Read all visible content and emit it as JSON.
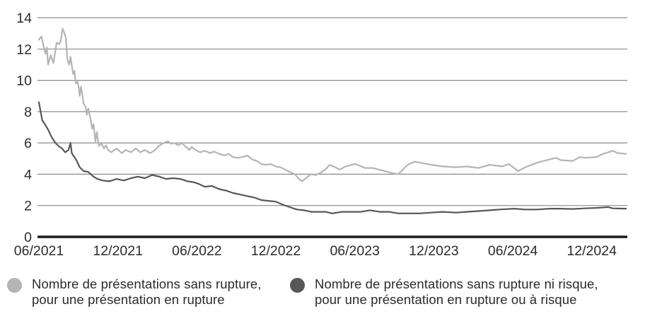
{
  "chart_data": {
    "type": "line",
    "title": "",
    "xlabel": "",
    "ylabel": "",
    "grid": "horizontal",
    "legend_position": "bottom",
    "x_axis": {
      "unit": "months_since_06_2021",
      "range_months": [
        0,
        44.7
      ],
      "ticks": [
        {
          "label": "06/2021",
          "month": 0
        },
        {
          "label": "12/2021",
          "month": 6
        },
        {
          "label": "06/2022",
          "month": 12
        },
        {
          "label": "12/2022",
          "month": 18
        },
        {
          "label": "06/2023",
          "month": 24
        },
        {
          "label": "12/2023",
          "month": 30
        },
        {
          "label": "06/2024",
          "month": 36
        },
        {
          "label": "12/2024",
          "month": 42
        }
      ]
    },
    "y_axis": {
      "range": [
        0,
        14
      ],
      "ticks": [
        0,
        2,
        4,
        6,
        8,
        10,
        12,
        14
      ]
    },
    "series": [
      {
        "name": "Nombre de présentations sans rupture, pour une présentation en rupture",
        "color": "#b4b4b4",
        "points": [
          [
            0,
            12.6
          ],
          [
            0.2,
            12.8
          ],
          [
            0.35,
            12.2
          ],
          [
            0.5,
            11.7
          ],
          [
            0.6,
            12.1
          ],
          [
            0.7,
            11.0
          ],
          [
            0.9,
            11.6
          ],
          [
            1.1,
            11.1
          ],
          [
            1.35,
            12.4
          ],
          [
            1.55,
            12.3
          ],
          [
            1.65,
            12.5
          ],
          [
            1.8,
            13.3
          ],
          [
            1.9,
            13.1
          ],
          [
            2.05,
            12.7
          ],
          [
            2.15,
            11.4
          ],
          [
            2.3,
            11.0
          ],
          [
            2.4,
            11.5
          ],
          [
            2.6,
            10.4
          ],
          [
            2.7,
            10.6
          ],
          [
            2.8,
            9.8
          ],
          [
            2.95,
            9.9
          ],
          [
            3.05,
            9.4
          ],
          [
            3.1,
            9.0
          ],
          [
            3.2,
            9.6
          ],
          [
            3.4,
            8.5
          ],
          [
            3.55,
            8.3
          ],
          [
            3.65,
            7.8
          ],
          [
            3.75,
            8.2
          ],
          [
            3.9,
            7.6
          ],
          [
            4.05,
            6.9
          ],
          [
            4.15,
            7.2
          ],
          [
            4.3,
            6.1
          ],
          [
            4.4,
            6.7
          ],
          [
            4.55,
            5.8
          ],
          [
            4.75,
            5.95
          ],
          [
            4.95,
            5.65
          ],
          [
            5.1,
            5.85
          ],
          [
            5.25,
            5.55
          ],
          [
            5.5,
            5.4
          ],
          [
            5.9,
            5.65
          ],
          [
            6.3,
            5.35
          ],
          [
            6.6,
            5.55
          ],
          [
            7.0,
            5.4
          ],
          [
            7.35,
            5.65
          ],
          [
            7.7,
            5.4
          ],
          [
            8.05,
            5.55
          ],
          [
            8.45,
            5.35
          ],
          [
            8.75,
            5.5
          ],
          [
            9.1,
            5.8
          ],
          [
            9.5,
            6.0
          ],
          [
            9.8,
            6.1
          ],
          [
            10.05,
            5.95
          ],
          [
            10.3,
            6.0
          ],
          [
            10.6,
            5.85
          ],
          [
            10.85,
            6.0
          ],
          [
            11.1,
            5.8
          ],
          [
            11.45,
            5.55
          ],
          [
            11.6,
            5.75
          ],
          [
            11.9,
            5.55
          ],
          [
            12.25,
            5.4
          ],
          [
            12.6,
            5.5
          ],
          [
            13.0,
            5.35
          ],
          [
            13.3,
            5.45
          ],
          [
            13.7,
            5.3
          ],
          [
            14.1,
            5.2
          ],
          [
            14.4,
            5.3
          ],
          [
            14.75,
            5.1
          ],
          [
            15.15,
            5.05
          ],
          [
            15.45,
            5.1
          ],
          [
            15.85,
            5.2
          ],
          [
            16.2,
            4.95
          ],
          [
            16.55,
            4.85
          ],
          [
            16.9,
            4.65
          ],
          [
            17.3,
            4.6
          ],
          [
            17.6,
            4.65
          ],
          [
            18.0,
            4.5
          ],
          [
            18.35,
            4.45
          ],
          [
            18.7,
            4.3
          ],
          [
            19.05,
            4.15
          ],
          [
            19.45,
            4.0
          ],
          [
            19.75,
            3.7
          ],
          [
            20.0,
            3.55
          ],
          [
            20.3,
            3.75
          ],
          [
            20.65,
            4.0
          ],
          [
            21.05,
            3.95
          ],
          [
            21.4,
            4.1
          ],
          [
            21.75,
            4.3
          ],
          [
            22.1,
            4.6
          ],
          [
            22.5,
            4.45
          ],
          [
            22.85,
            4.3
          ],
          [
            23.3,
            4.5
          ],
          [
            23.75,
            4.6
          ],
          [
            24.05,
            4.65
          ],
          [
            24.5,
            4.5
          ],
          [
            24.8,
            4.4
          ],
          [
            25.35,
            4.4
          ],
          [
            25.8,
            4.3
          ],
          [
            26.3,
            4.2
          ],
          [
            26.95,
            4.05
          ],
          [
            27.3,
            4.0
          ],
          [
            28.0,
            4.6
          ],
          [
            28.55,
            4.8
          ],
          [
            28.9,
            4.75
          ],
          [
            29.8,
            4.6
          ],
          [
            30.7,
            4.5
          ],
          [
            31.6,
            4.45
          ],
          [
            32.5,
            4.5
          ],
          [
            33.4,
            4.4
          ],
          [
            34.25,
            4.6
          ],
          [
            35.2,
            4.5
          ],
          [
            35.7,
            4.65
          ],
          [
            36.4,
            4.2
          ],
          [
            36.95,
            4.45
          ],
          [
            37.9,
            4.75
          ],
          [
            38.8,
            4.95
          ],
          [
            39.3,
            5.05
          ],
          [
            39.65,
            4.9
          ],
          [
            40.55,
            4.85
          ],
          [
            41.1,
            5.1
          ],
          [
            41.45,
            5.05
          ],
          [
            42.35,
            5.1
          ],
          [
            42.85,
            5.3
          ],
          [
            43.25,
            5.4
          ],
          [
            43.6,
            5.5
          ],
          [
            43.95,
            5.35
          ],
          [
            44.6,
            5.3
          ]
        ]
      },
      {
        "name": "Nombre de présentations sans rupture ni risque, pour une présentation en rupture ou à risque",
        "color": "#575757",
        "points": [
          [
            0,
            8.6
          ],
          [
            0.25,
            7.45
          ],
          [
            0.45,
            7.2
          ],
          [
            0.7,
            6.85
          ],
          [
            0.95,
            6.4
          ],
          [
            1.25,
            6.0
          ],
          [
            1.5,
            5.8
          ],
          [
            1.75,
            5.65
          ],
          [
            2.0,
            5.4
          ],
          [
            2.25,
            5.55
          ],
          [
            2.4,
            6.0
          ],
          [
            2.5,
            5.35
          ],
          [
            2.85,
            4.9
          ],
          [
            3.1,
            4.45
          ],
          [
            3.4,
            4.2
          ],
          [
            3.75,
            4.15
          ],
          [
            4.15,
            3.85
          ],
          [
            4.45,
            3.7
          ],
          [
            4.85,
            3.6
          ],
          [
            5.35,
            3.55
          ],
          [
            5.9,
            3.7
          ],
          [
            6.45,
            3.6
          ],
          [
            7.0,
            3.75
          ],
          [
            7.5,
            3.85
          ],
          [
            8.05,
            3.75
          ],
          [
            8.6,
            3.95
          ],
          [
            9.15,
            3.85
          ],
          [
            9.65,
            3.7
          ],
          [
            10.2,
            3.75
          ],
          [
            10.75,
            3.7
          ],
          [
            11.3,
            3.55
          ],
          [
            11.7,
            3.5
          ],
          [
            12.1,
            3.4
          ],
          [
            12.6,
            3.2
          ],
          [
            13.15,
            3.25
          ],
          [
            13.7,
            3.05
          ],
          [
            14.25,
            2.95
          ],
          [
            14.75,
            2.8
          ],
          [
            15.3,
            2.7
          ],
          [
            15.85,
            2.6
          ],
          [
            16.4,
            2.5
          ],
          [
            16.9,
            2.35
          ],
          [
            17.45,
            2.3
          ],
          [
            18.0,
            2.25
          ],
          [
            18.55,
            2.05
          ],
          [
            19.05,
            1.9
          ],
          [
            19.6,
            1.75
          ],
          [
            20.15,
            1.7
          ],
          [
            20.7,
            1.6
          ],
          [
            21.2,
            1.6
          ],
          [
            21.75,
            1.6
          ],
          [
            22.3,
            1.5
          ],
          [
            23.0,
            1.6
          ],
          [
            23.75,
            1.6
          ],
          [
            24.45,
            1.6
          ],
          [
            25.15,
            1.7
          ],
          [
            25.9,
            1.6
          ],
          [
            26.6,
            1.6
          ],
          [
            27.3,
            1.5
          ],
          [
            28.05,
            1.5
          ],
          [
            28.9,
            1.5
          ],
          [
            29.8,
            1.55
          ],
          [
            30.7,
            1.6
          ],
          [
            31.7,
            1.55
          ],
          [
            32.5,
            1.6
          ],
          [
            33.4,
            1.65
          ],
          [
            34.25,
            1.7
          ],
          [
            35.0,
            1.75
          ],
          [
            36.1,
            1.8
          ],
          [
            36.95,
            1.75
          ],
          [
            37.9,
            1.75
          ],
          [
            38.8,
            1.8
          ],
          [
            39.65,
            1.8
          ],
          [
            40.55,
            1.78
          ],
          [
            41.45,
            1.82
          ],
          [
            42.35,
            1.85
          ],
          [
            43.25,
            1.9
          ],
          [
            43.6,
            1.82
          ],
          [
            44.6,
            1.8
          ]
        ]
      }
    ]
  },
  "legend": [
    {
      "label": "Nombre de présentations sans rupture,\npour une présentation en rupture",
      "color": "#b4b4b4"
    },
    {
      "label": "Nombre de présentations sans rupture ni risque,\npour une présentation en rupture ou à risque",
      "color": "#575757"
    }
  ],
  "colors": {
    "grid": "#8a8a8a",
    "axis": "#1a1a1a",
    "text": "#2b2b2b",
    "background": "#ffffff"
  }
}
